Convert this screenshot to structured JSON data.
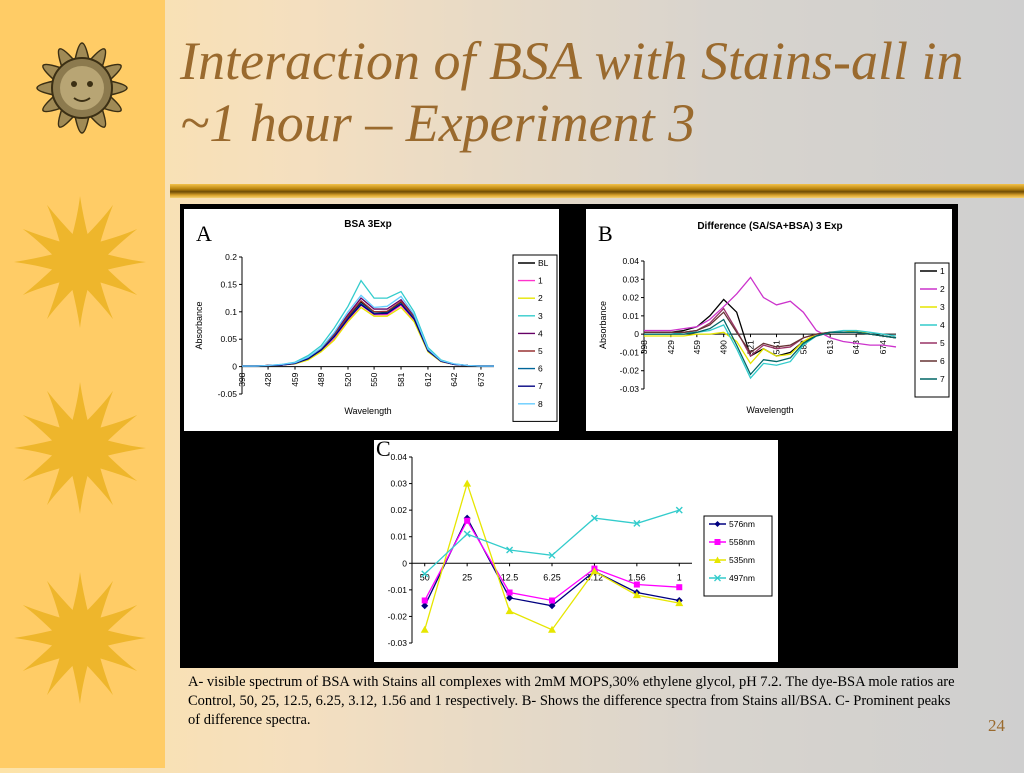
{
  "slide": {
    "title": "Interaction of BSA with Stains-all in ~1 hour – Experiment 3",
    "caption": "A- visible spectrum of  BSA with Stains all complexes with 2mM MOPS,30% ethylene glycol, pH 7.2. The dye-BSA mole ratios are Control, 50, 25, 12.5, 6.25, 3.12, 1.56 and 1 respectively. B- Shows the difference spectra from Stains all/BSA. C- Prominent peaks of difference spectra.",
    "page_number": "24"
  },
  "decoration": {
    "icon": "sun-icon",
    "count": 4
  },
  "chart_data": [
    {
      "panel_label": "A",
      "type": "line",
      "title": "BSA 3Exp",
      "xlabel": "Wavelength",
      "ylabel": "Absorbance",
      "x_ticks": [
        "398",
        "428",
        "459",
        "489",
        "520",
        "550",
        "581",
        "612",
        "642",
        "673"
      ],
      "y_ticks": [
        "0.2",
        "0.15",
        "0.1",
        "0.05",
        "0",
        "-0.05"
      ],
      "ylim": [
        -0.05,
        0.2
      ],
      "legend": "right",
      "x": [
        398,
        413,
        428,
        444,
        459,
        474,
        489,
        504,
        520,
        535,
        550,
        565,
        581,
        596,
        612,
        627,
        642,
        658,
        673,
        688
      ],
      "series": [
        {
          "name": "BL",
          "color": "#000000",
          "values": [
            0.001,
            0.001,
            0.002,
            0.003,
            0.006,
            0.015,
            0.03,
            0.055,
            0.09,
            0.118,
            0.1,
            0.1,
            0.118,
            0.09,
            0.03,
            0.01,
            0.004,
            0.002,
            0.001,
            0.001
          ]
        },
        {
          "name": "1",
          "color": "#ff33cc",
          "values": [
            0.001,
            0.001,
            0.002,
            0.003,
            0.005,
            0.013,
            0.028,
            0.05,
            0.085,
            0.112,
            0.095,
            0.095,
            0.112,
            0.085,
            0.028,
            0.009,
            0.004,
            0.002,
            0.001,
            0.001
          ]
        },
        {
          "name": "2",
          "color": "#e6e600",
          "values": [
            0.001,
            0.001,
            0.002,
            0.003,
            0.005,
            0.012,
            0.027,
            0.048,
            0.082,
            0.108,
            0.092,
            0.092,
            0.108,
            0.082,
            0.027,
            0.009,
            0.004,
            0.002,
            0.001,
            0.001
          ]
        },
        {
          "name": "3",
          "color": "#33cccc",
          "values": [
            0.001,
            0.001,
            0.002,
            0.004,
            0.008,
            0.02,
            0.038,
            0.07,
            0.11,
            0.157,
            0.125,
            0.125,
            0.137,
            0.1,
            0.035,
            0.012,
            0.005,
            0.002,
            0.001,
            0.001
          ]
        },
        {
          "name": "4",
          "color": "#660066",
          "values": [
            0.001,
            0.001,
            0.002,
            0.003,
            0.006,
            0.016,
            0.032,
            0.06,
            0.095,
            0.125,
            0.105,
            0.105,
            0.122,
            0.092,
            0.03,
            0.01,
            0.004,
            0.002,
            0.001,
            0.001
          ]
        },
        {
          "name": "5",
          "color": "#993333",
          "values": [
            0.001,
            0.001,
            0.002,
            0.003,
            0.006,
            0.015,
            0.031,
            0.057,
            0.092,
            0.12,
            0.1,
            0.101,
            0.119,
            0.09,
            0.03,
            0.01,
            0.004,
            0.002,
            0.001,
            0.001
          ]
        },
        {
          "name": "6",
          "color": "#006699",
          "values": [
            0.001,
            0.001,
            0.002,
            0.003,
            0.006,
            0.015,
            0.03,
            0.055,
            0.088,
            0.115,
            0.097,
            0.098,
            0.115,
            0.088,
            0.029,
            0.01,
            0.004,
            0.002,
            0.001,
            0.001
          ]
        },
        {
          "name": "7",
          "color": "#000080",
          "values": [
            0.001,
            0.001,
            0.002,
            0.003,
            0.006,
            0.014,
            0.03,
            0.054,
            0.087,
            0.113,
            0.096,
            0.097,
            0.114,
            0.087,
            0.029,
            0.01,
            0.004,
            0.002,
            0.001,
            0.001
          ]
        },
        {
          "name": "8",
          "color": "#66ccff",
          "values": [
            0.001,
            0.001,
            0.002,
            0.004,
            0.007,
            0.017,
            0.034,
            0.062,
            0.1,
            0.13,
            0.108,
            0.11,
            0.128,
            0.095,
            0.032,
            0.011,
            0.005,
            0.002,
            0.001,
            0.001
          ]
        }
      ]
    },
    {
      "panel_label": "B",
      "type": "line",
      "title": "Difference (SA/SA+BSA) 3 Exp",
      "xlabel": "Wavelength",
      "ylabel": "Absorbance",
      "x_ticks": [
        "398",
        "429",
        "459",
        "490",
        "521",
        "551",
        "582",
        "613",
        "643",
        "674"
      ],
      "y_ticks": [
        "0.04",
        "0.03",
        "0.02",
        "0.01",
        "0",
        "-0.01",
        "-0.02",
        "-0.03"
      ],
      "ylim": [
        -0.03,
        0.04
      ],
      "legend": "right",
      "x": [
        398,
        413,
        429,
        444,
        459,
        474,
        490,
        505,
        521,
        536,
        551,
        567,
        582,
        597,
        613,
        628,
        643,
        659,
        674,
        689
      ],
      "series": [
        {
          "name": "1",
          "color": "#000000",
          "values": [
            0.001,
            0.001,
            0.001,
            0.002,
            0.004,
            0.01,
            0.019,
            0.012,
            -0.012,
            -0.008,
            -0.012,
            -0.01,
            -0.004,
            -0.001,
            0.001,
            0.001,
            0.001,
            0.0,
            -0.001,
            -0.002
          ]
        },
        {
          "name": "2",
          "color": "#cc33cc",
          "values": [
            0.002,
            0.002,
            0.002,
            0.003,
            0.004,
            0.008,
            0.015,
            0.022,
            0.031,
            0.02,
            0.016,
            0.018,
            0.012,
            0.002,
            -0.002,
            -0.004,
            -0.005,
            -0.006,
            -0.006,
            -0.007
          ]
        },
        {
          "name": "3",
          "color": "#e6e600",
          "values": [
            -0.001,
            -0.001,
            -0.001,
            -0.001,
            0.0,
            0.0,
            0.001,
            -0.004,
            -0.016,
            -0.008,
            -0.012,
            -0.011,
            -0.004,
            0.0,
            0.001,
            0.001,
            0.002,
            0.0,
            -0.001,
            -0.002
          ]
        },
        {
          "name": "4",
          "color": "#33cccc",
          "values": [
            0.0,
            0.0,
            0.0,
            0.001,
            0.001,
            0.002,
            0.005,
            -0.008,
            -0.024,
            -0.016,
            -0.017,
            -0.015,
            -0.006,
            -0.001,
            0.001,
            0.002,
            0.002,
            0.001,
            0.0,
            -0.001
          ]
        },
        {
          "name": "5",
          "color": "#993366",
          "values": [
            0.001,
            0.001,
            0.001,
            0.001,
            0.002,
            0.006,
            0.014,
            0.002,
            -0.012,
            -0.006,
            -0.008,
            -0.007,
            -0.002,
            0.0,
            0.001,
            0.001,
            0.001,
            0.0,
            -0.001,
            -0.002
          ]
        },
        {
          "name": "6",
          "color": "#663333",
          "values": [
            0.001,
            0.001,
            0.001,
            0.001,
            0.002,
            0.005,
            0.012,
            0.001,
            -0.01,
            -0.005,
            -0.007,
            -0.006,
            -0.002,
            0.0,
            0.001,
            0.001,
            0.001,
            0.0,
            -0.001,
            -0.002
          ]
        },
        {
          "name": "7",
          "color": "#006666",
          "values": [
            0.0,
            0.0,
            0.0,
            0.0,
            0.001,
            0.003,
            0.008,
            -0.006,
            -0.022,
            -0.014,
            -0.015,
            -0.013,
            -0.005,
            -0.001,
            0.001,
            0.001,
            0.001,
            0.0,
            -0.001,
            -0.002
          ]
        }
      ]
    },
    {
      "panel_label": "C",
      "type": "line",
      "title": "",
      "categories": [
        "50",
        "25",
        "12.5",
        "6.25",
        "3.12",
        "1.56",
        "1"
      ],
      "y_ticks": [
        "0.04",
        "0.03",
        "0.02",
        "0.01",
        "0",
        "-0.01",
        "-0.02",
        "-0.03"
      ],
      "ylim": [
        -0.03,
        0.04
      ],
      "legend": "right",
      "series": [
        {
          "name": "576nm",
          "color": "#000080",
          "marker": "diamond",
          "values": [
            -0.016,
            0.017,
            -0.013,
            -0.016,
            -0.003,
            -0.011,
            -0.014
          ]
        },
        {
          "name": "558nm",
          "color": "#ff00ff",
          "marker": "square",
          "values": [
            -0.014,
            0.016,
            -0.011,
            -0.014,
            -0.002,
            -0.008,
            -0.009
          ]
        },
        {
          "name": "535nm",
          "color": "#e6e600",
          "marker": "triangle",
          "values": [
            -0.025,
            0.03,
            -0.018,
            -0.025,
            -0.003,
            -0.012,
            -0.015
          ]
        },
        {
          "name": "497nm",
          "color": "#33cccc",
          "marker": "x",
          "values": [
            -0.004,
            0.011,
            0.005,
            0.003,
            0.017,
            0.015,
            0.02
          ]
        }
      ]
    }
  ]
}
